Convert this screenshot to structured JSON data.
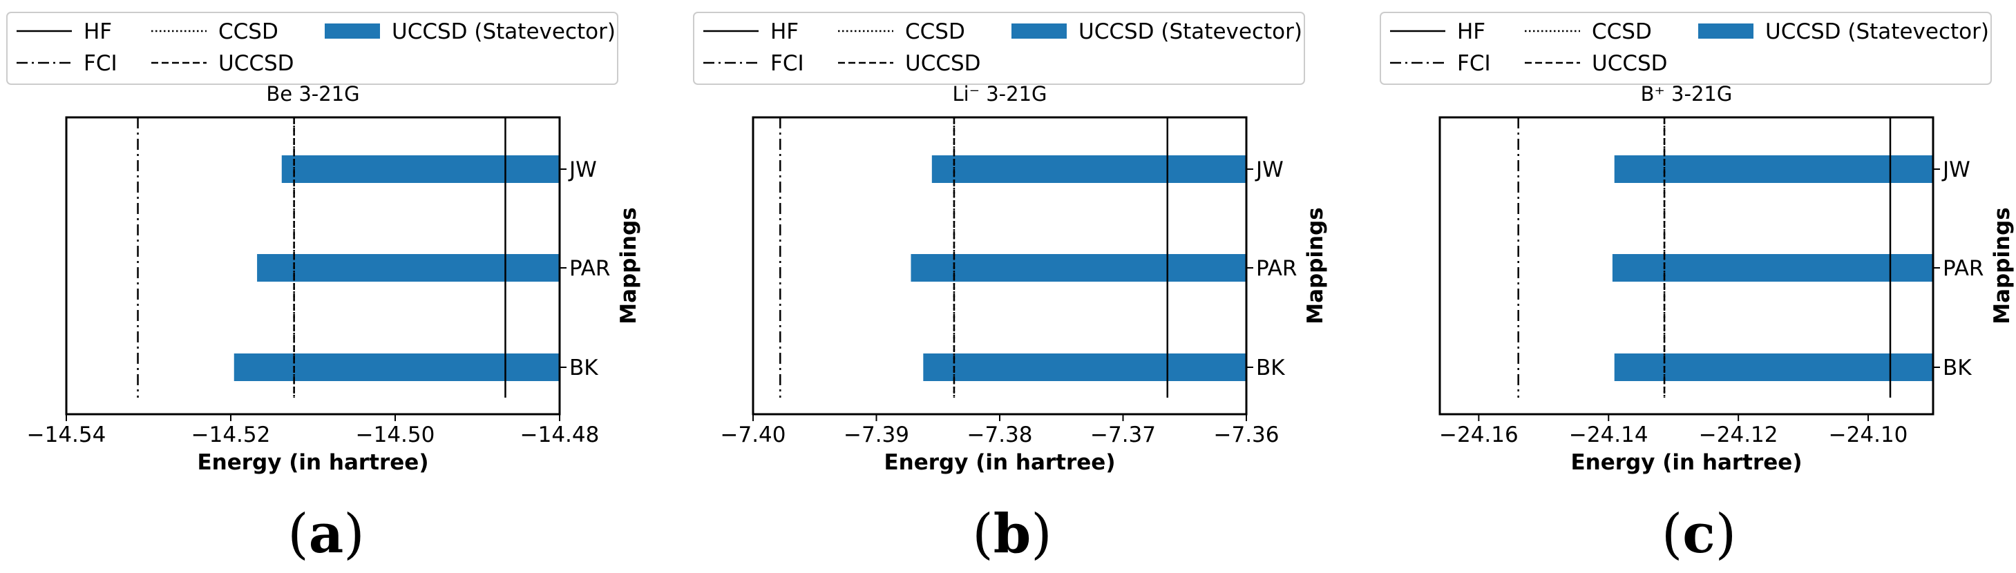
{
  "colors": {
    "bar": "#1f77b4",
    "line": "#000000",
    "legend_border": "#cccccc"
  },
  "legend": {
    "entries": [
      {
        "label": "HF",
        "style": "solid"
      },
      {
        "label": "FCI",
        "style": "dashdot"
      },
      {
        "label": "CCSD",
        "style": "dotted"
      },
      {
        "label": "UCCSD",
        "style": "dashed"
      },
      {
        "label": "UCCSD (Statevector)",
        "style": "bar"
      }
    ]
  },
  "chart_data": [
    {
      "type": "bar",
      "orientation": "horizontal",
      "title": "Be 3-21G",
      "caption_letter": "a",
      "xlabel": "Energy (in hartree)",
      "ylabel": "Mappings",
      "categories": [
        "JW",
        "PAR",
        "BK"
      ],
      "values": [
        -14.5138,
        -14.5168,
        -14.5196
      ],
      "xlim": [
        -14.54,
        -14.48
      ],
      "xticks": [
        -14.54,
        -14.52,
        -14.5,
        -14.48
      ],
      "xtick_labels": [
        "−14.54",
        "−14.52",
        "−14.50",
        "−14.48"
      ],
      "reference_lines": {
        "HF": -14.4866,
        "FCI": -14.5313,
        "CCSD": -14.5123,
        "UCCSD": -14.5123
      }
    },
    {
      "type": "bar",
      "orientation": "horizontal",
      "title": "Li⁻ 3-21G",
      "caption_letter": "b",
      "xlabel": "Energy (in hartree)",
      "ylabel": "Mappings",
      "categories": [
        "JW",
        "PAR",
        "BK"
      ],
      "values": [
        -7.3855,
        -7.3872,
        -7.3862
      ],
      "xlim": [
        -7.4,
        -7.36
      ],
      "xticks": [
        -7.4,
        -7.39,
        -7.38,
        -7.37,
        -7.36
      ],
      "xtick_labels": [
        "−7.40",
        "−7.39",
        "−7.38",
        "−7.37",
        "−7.36"
      ],
      "reference_lines": {
        "HF": -7.3664,
        "FCI": -7.3978,
        "CCSD": -7.3837,
        "UCCSD": -7.3837
      }
    },
    {
      "type": "bar",
      "orientation": "horizontal",
      "title": "B⁺ 3-21G",
      "caption_letter": "c",
      "xlabel": "Energy (in hartree)",
      "ylabel": "Mappings",
      "categories": [
        "JW",
        "PAR",
        "BK"
      ],
      "values": [
        -24.1391,
        -24.1394,
        -24.1391
      ],
      "xlim": [
        -24.166,
        -24.09
      ],
      "xticks": [
        -24.16,
        -24.14,
        -24.12,
        -24.1
      ],
      "xtick_labels": [
        "−24.16",
        "−24.14",
        "−24.12",
        "−24.10"
      ],
      "reference_lines": {
        "HF": -24.0966,
        "FCI": -24.1539,
        "CCSD": -24.1314,
        "UCCSD": -24.1314
      }
    }
  ]
}
